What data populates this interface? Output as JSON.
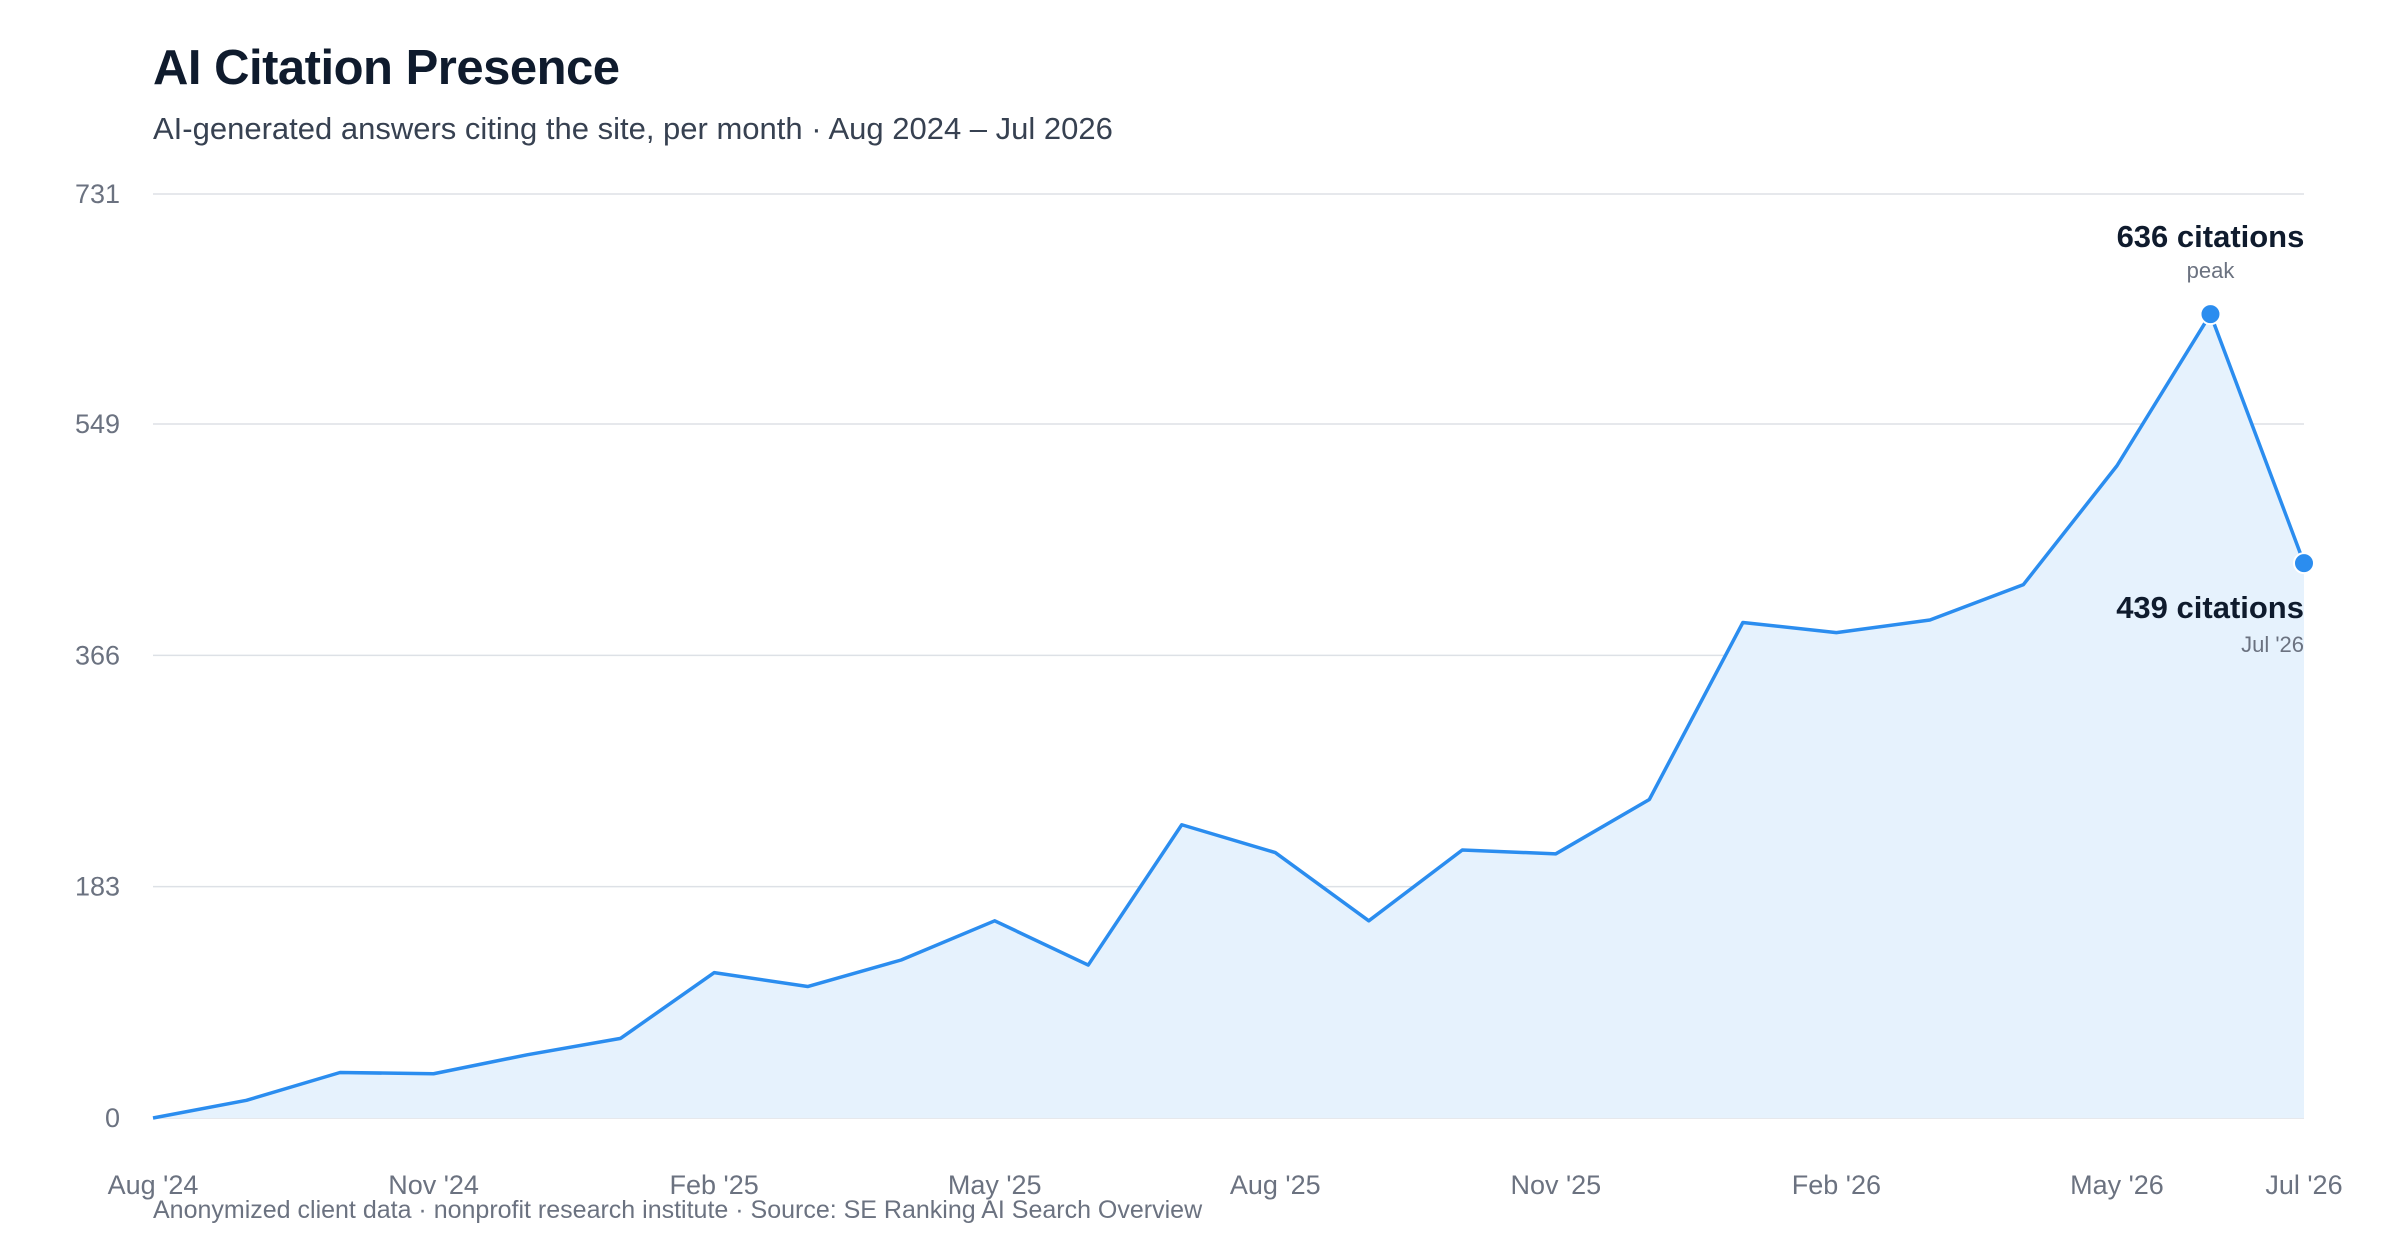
{
  "title": "AI Citation Presence",
  "subtitle": "AI-generated answers citing the site, per month · Aug 2024 – Jul 2026",
  "footer": "Anonymized client data · nonprofit research institute · Source: SE Ranking AI Search Overview",
  "colors": {
    "line": "#2b8def",
    "area": "#e6f2fd",
    "grid": "#dde1e6",
    "text": "#0f1b2d",
    "muted": "#6b7280"
  },
  "chart_data": {
    "type": "area",
    "title": "AI Citation Presence",
    "subtitle": "AI-generated answers citing the site, per month · Aug 2024 – Jul 2026",
    "xlabel": "",
    "ylabel": "",
    "ylim": [
      0,
      731
    ],
    "yticks": [
      0,
      183,
      366,
      549,
      731
    ],
    "grid": true,
    "legend": "none",
    "x": [
      "Aug '24",
      "Sep '24",
      "Oct '24",
      "Nov '24",
      "Dec '24",
      "Jan '25",
      "Feb '25",
      "Mar '25",
      "Apr '25",
      "May '25",
      "Jun '25",
      "Jul '25",
      "Aug '25",
      "Sep '25",
      "Oct '25",
      "Nov '25",
      "Dec '25",
      "Jan '26",
      "Feb '26",
      "Mar '26",
      "Apr '26",
      "May '26",
      "Jun '26",
      "Jul '26"
    ],
    "xtick_labels": [
      "Aug '24",
      "Nov '24",
      "Feb '25",
      "May '25",
      "Aug '25",
      "Nov '25",
      "Feb '26",
      "May '26",
      "Jul '26"
    ],
    "xtick_indices": [
      0,
      3,
      6,
      9,
      12,
      15,
      18,
      21,
      23
    ],
    "series": [
      {
        "values": [
          0,
          14,
          36,
          35,
          50,
          63,
          115,
          104,
          125,
          156,
          121,
          232,
          210,
          156,
          212,
          209,
          252,
          392,
          384,
          394,
          422,
          516,
          636,
          439
        ]
      }
    ],
    "annotations": [
      {
        "index": 22,
        "label": "636 citations",
        "sublabel": "peak"
      },
      {
        "index": 23,
        "label": "439 citations",
        "sublabel": "Jul '26"
      }
    ]
  }
}
